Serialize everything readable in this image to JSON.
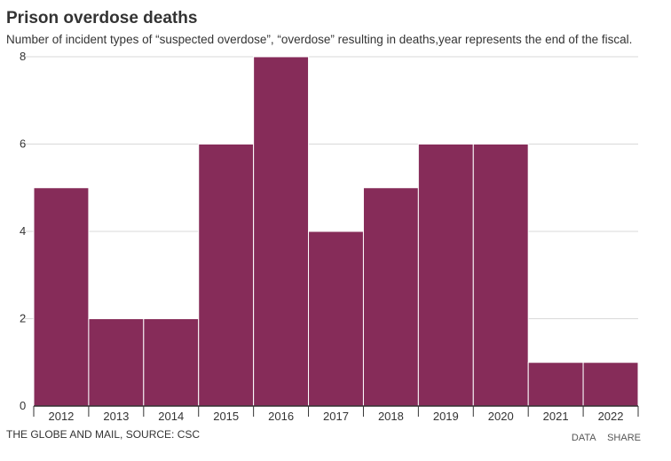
{
  "header": {
    "title": "Prison overdose deaths",
    "subtitle": "Number of incident types of “suspected overdose”, “overdose” resulting in deaths,year represents the end of the fiscal."
  },
  "footer": {
    "source": "THE GLOBE AND MAIL, SOURCE: CSC",
    "data_link": "DATA",
    "share_link": "SHARE"
  },
  "colors": {
    "bar": "#862c59",
    "grid": "#d9d9d9",
    "axis": "#333333"
  },
  "chart_data": {
    "type": "bar",
    "title": "Prison overdose deaths",
    "subtitle": "Number of incident types of “suspected overdose”, “overdose” resulting in deaths,year represents the end of the fiscal.",
    "categories": [
      "2012",
      "2013",
      "2014",
      "2015",
      "2016",
      "2017",
      "2018",
      "2019",
      "2020",
      "2021",
      "2022"
    ],
    "values": [
      5,
      2,
      2,
      6,
      8,
      4,
      5,
      6,
      6,
      1,
      1
    ],
    "xlabel": "",
    "ylabel": "",
    "ylim": [
      0,
      8
    ],
    "yticks": [
      0,
      2,
      4,
      6,
      8
    ],
    "grid": true,
    "legend": "none"
  }
}
